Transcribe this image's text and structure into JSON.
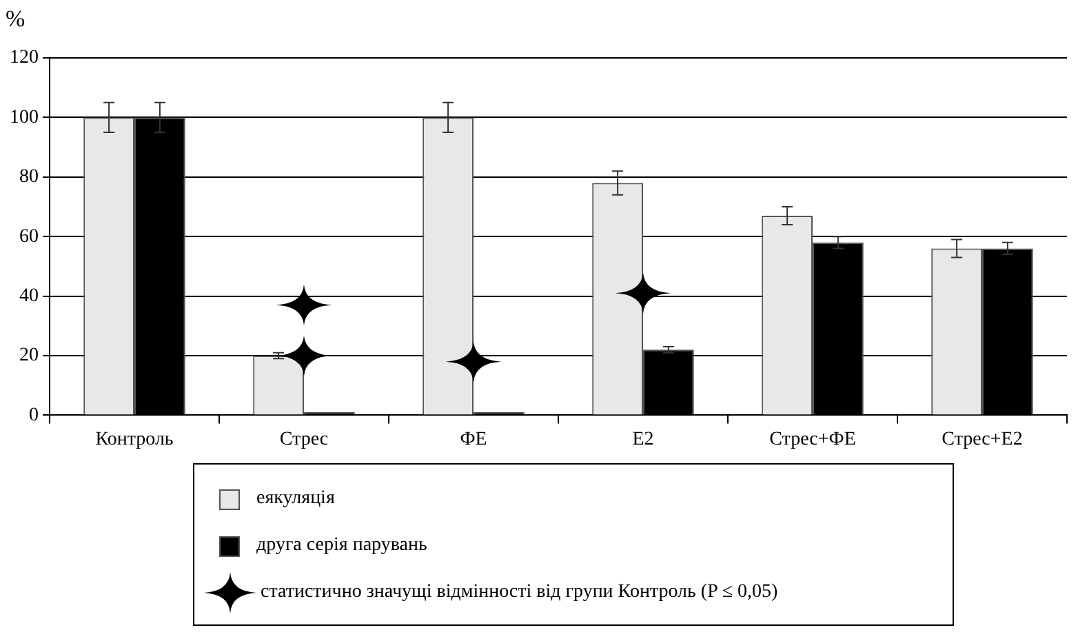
{
  "chart_data": {
    "type": "bar",
    "ylabel": "%",
    "categories": [
      "Контроль",
      "Стрес",
      "ФЕ",
      "E2",
      "Стрес+ФЕ",
      "Стрес+E2"
    ],
    "series": [
      {
        "name": "еякуляція",
        "color": "#e8e8e8",
        "values": [
          100,
          20,
          100,
          78,
          67,
          56
        ],
        "errors": [
          5,
          1,
          5,
          4,
          3,
          3
        ]
      },
      {
        "name": "друга серія парувань",
        "color": "#000000",
        "values": [
          100,
          1,
          1,
          22,
          58,
          56
        ],
        "errors": [
          5,
          null,
          null,
          1,
          2,
          2
        ]
      },
      {
        "name": "статистично значущі відмінності від групи Контроль (P ≤ 0,05)",
        "type": "scatter",
        "marker": "star",
        "color": "#000000",
        "x": [
          "Стрес",
          "Стрес",
          "ФЕ",
          "E2"
        ],
        "values": [
          37,
          20,
          18,
          41
        ]
      }
    ],
    "ylim": [
      0,
      120
    ],
    "yticks": [
      0,
      20,
      40,
      60,
      80,
      100,
      120
    ],
    "grid": "y",
    "legend": "bottom"
  }
}
